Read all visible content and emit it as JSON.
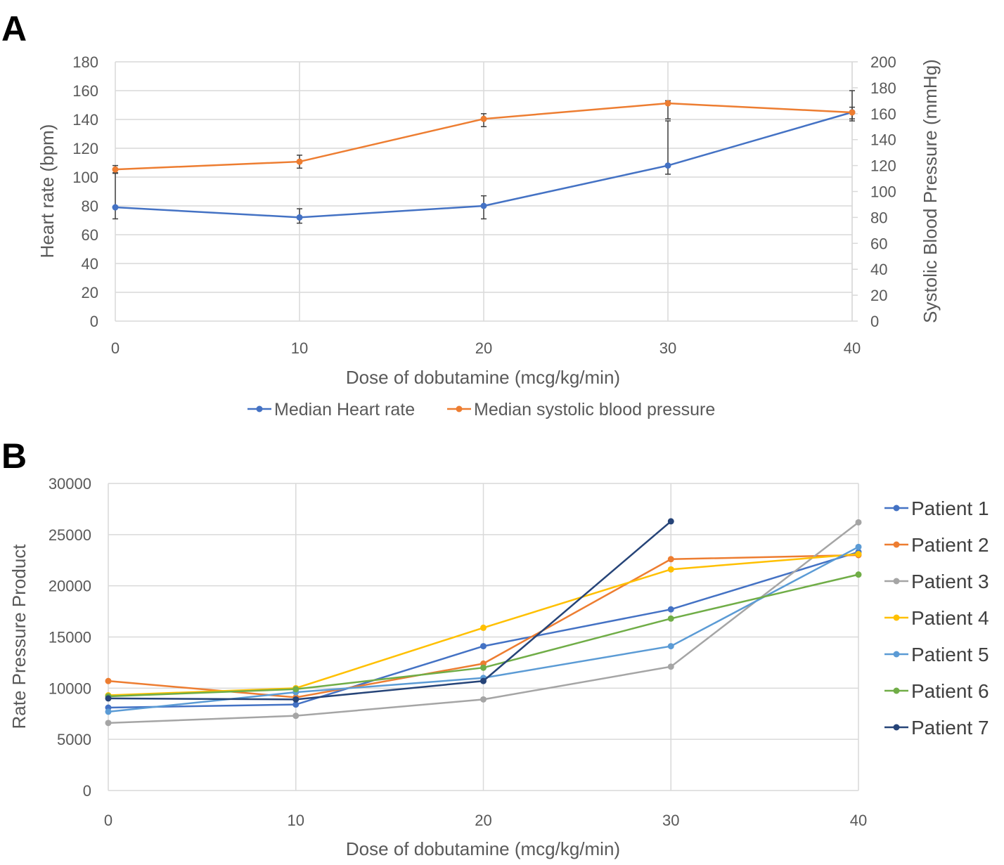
{
  "panels": {
    "a_label": "A",
    "b_label": "B"
  },
  "colors": {
    "heart_rate": "#4472C4",
    "systolic_bp": "#ED7D31",
    "patient_1": "#4472C4",
    "patient_2": "#ED7D31",
    "patient_3": "#A5A5A5",
    "patient_4": "#FFC000",
    "patient_5": "#5B9BD5",
    "patient_6": "#70AD47",
    "patient_7": "#264478"
  },
  "chart_data": [
    {
      "type": "line",
      "panel": "A",
      "xlabel": "Dose of dobutamine (mcg/kg/min)",
      "ylabel": "Heart rate (bpm)",
      "y2label": "Systolic Blood Pressure (mmHg)",
      "x": [
        0,
        10,
        20,
        30,
        40
      ],
      "xticks": [
        "0",
        "10",
        "20",
        "30",
        "40"
      ],
      "xlim": [
        0,
        40
      ],
      "ylim": [
        0,
        180
      ],
      "y2lim": [
        0,
        200
      ],
      "yticks": [
        "0",
        "20",
        "40",
        "60",
        "80",
        "100",
        "120",
        "140",
        "160",
        "180"
      ],
      "y2ticks": [
        "0",
        "20",
        "40",
        "60",
        "80",
        "100",
        "120",
        "140",
        "160",
        "180",
        "200"
      ],
      "grid": true,
      "legend_position": "bottom",
      "series": [
        {
          "name": "Median Heart rate",
          "axis": "left",
          "values": [
            79,
            72,
            80,
            108,
            145
          ],
          "err_low": [
            71,
            68,
            71,
            102,
            139
          ],
          "err_high": [
            103,
            78,
            87,
            139,
            160
          ]
        },
        {
          "name": "Median systolic blood pressure",
          "axis": "right",
          "values": [
            117,
            123,
            156,
            168,
            161
          ],
          "err_low": [
            114,
            118,
            150,
            156,
            156
          ],
          "err_high": [
            120,
            128,
            160,
            170,
            165
          ]
        }
      ]
    },
    {
      "type": "line",
      "panel": "B",
      "xlabel": "Dose of dobutamine (mcg/kg/min)",
      "ylabel": "Rate Pressure Product",
      "x": [
        0,
        10,
        20,
        30,
        40
      ],
      "xticks": [
        "0",
        "10",
        "20",
        "30",
        "40"
      ],
      "xlim": [
        0,
        40
      ],
      "ylim": [
        0,
        30000
      ],
      "yticks": [
        "0",
        "5000",
        "10000",
        "15000",
        "20000",
        "25000",
        "30000"
      ],
      "grid": true,
      "legend_position": "right",
      "series": [
        {
          "name": "Patient 1",
          "values": [
            8100,
            8400,
            14100,
            17700,
            23300
          ]
        },
        {
          "name": "Patient 2",
          "values": [
            10700,
            9100,
            12400,
            22600,
            23000
          ]
        },
        {
          "name": "Patient 3",
          "values": [
            6600,
            7300,
            8900,
            12100,
            26200
          ]
        },
        {
          "name": "Patient 4",
          "values": [
            9300,
            10000,
            15900,
            21600,
            23100
          ]
        },
        {
          "name": "Patient 5",
          "values": [
            7700,
            9600,
            11000,
            14100,
            23800
          ]
        },
        {
          "name": "Patient 6",
          "values": [
            9200,
            9900,
            12000,
            16800,
            21100
          ]
        },
        {
          "name": "Patient 7",
          "values": [
            9000,
            8900,
            10700,
            26300,
            null
          ]
        }
      ]
    }
  ]
}
